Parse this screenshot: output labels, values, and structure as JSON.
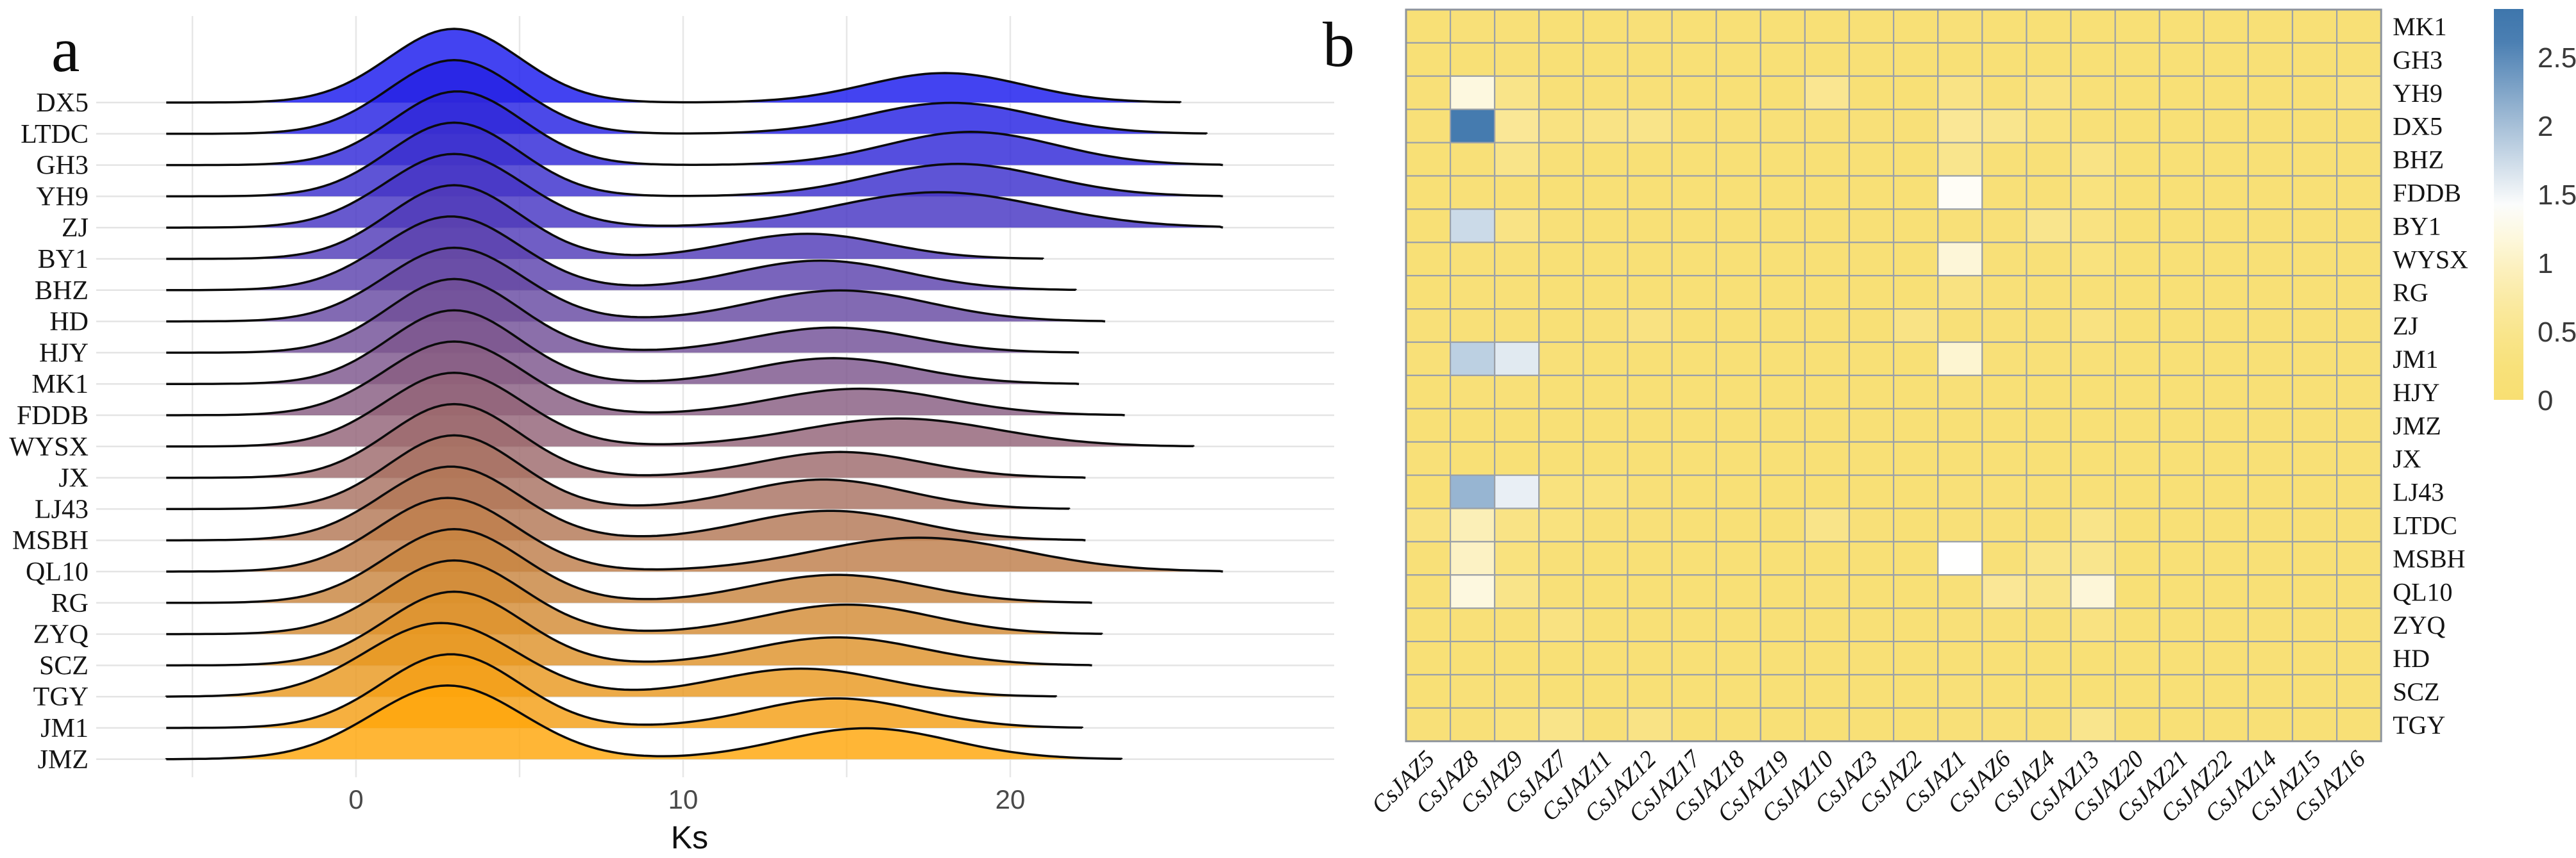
{
  "figure": {
    "background": "#FFFFFF",
    "panel_a_label": "a",
    "panel_b_label": "b"
  },
  "chart_data": [
    {
      "panel": "a",
      "type": "ridgeline",
      "title": "",
      "xlabel": "Ks",
      "ylabel": "",
      "x_ticks": [
        "0",
        "10",
        "20"
      ],
      "x_tick_values": [
        0,
        10,
        20
      ],
      "x_gridline_values": [
        -5,
        0,
        5,
        10,
        15,
        20
      ],
      "x_range": [
        -7.7,
        30
      ],
      "grid_on": true,
      "ridge_color_top": "#1A1AEE",
      "ridge_color_bottom": "#FFA60A",
      "outline_color": "#0B0B0B",
      "gridline_color": "#E7E7E7",
      "categories_top_to_bottom": [
        "DX5",
        "LTDC",
        "GH3",
        "YH9",
        "ZJ",
        "BY1",
        "BHZ",
        "HD",
        "HJY",
        "MK1",
        "FDDB",
        "WYSX",
        "JX",
        "LJ43",
        "MSBH",
        "QL10",
        "RG",
        "ZYQ",
        "SCZ",
        "TGY",
        "JM1",
        "JMZ"
      ],
      "series": [
        {
          "label": "DX5",
          "peak1": {
            "mu": 3.0,
            "sigma": 2.0,
            "amp": 1.0
          },
          "peak2": {
            "mu": 18.0,
            "sigma": 2.4,
            "amp": 0.4
          }
        },
        {
          "label": "LTDC",
          "peak1": {
            "mu": 3.0,
            "sigma": 2.0,
            "amp": 1.0
          },
          "peak2": {
            "mu": 18.2,
            "sigma": 2.6,
            "amp": 0.42
          }
        },
        {
          "label": "GH3",
          "peak1": {
            "mu": 3.1,
            "sigma": 2.0,
            "amp": 1.0
          },
          "peak2": {
            "mu": 18.8,
            "sigma": 2.6,
            "amp": 0.45
          }
        },
        {
          "label": "YH9",
          "peak1": {
            "mu": 3.0,
            "sigma": 2.0,
            "amp": 1.0
          },
          "peak2": {
            "mu": 18.4,
            "sigma": 2.7,
            "amp": 0.44
          }
        },
        {
          "label": "ZJ",
          "peak1": {
            "mu": 3.0,
            "sigma": 2.1,
            "amp": 1.0
          },
          "peak2": {
            "mu": 17.8,
            "sigma": 3.2,
            "amp": 0.48
          }
        },
        {
          "label": "BY1",
          "peak1": {
            "mu": 3.0,
            "sigma": 2.0,
            "amp": 1.0
          },
          "peak2": {
            "mu": 13.8,
            "sigma": 2.4,
            "amp": 0.34
          }
        },
        {
          "label": "BHZ",
          "peak1": {
            "mu": 2.9,
            "sigma": 2.1,
            "amp": 1.0
          },
          "peak2": {
            "mu": 14.2,
            "sigma": 2.6,
            "amp": 0.4
          }
        },
        {
          "label": "HD",
          "peak1": {
            "mu": 3.0,
            "sigma": 2.1,
            "amp": 1.0
          },
          "peak2": {
            "mu": 14.8,
            "sigma": 2.7,
            "amp": 0.42
          }
        },
        {
          "label": "HJY",
          "peak1": {
            "mu": 3.0,
            "sigma": 2.0,
            "amp": 1.0
          },
          "peak2": {
            "mu": 14.6,
            "sigma": 2.5,
            "amp": 0.34
          }
        },
        {
          "label": "MK1",
          "peak1": {
            "mu": 3.0,
            "sigma": 2.0,
            "amp": 1.0
          },
          "peak2": {
            "mu": 14.6,
            "sigma": 2.5,
            "amp": 0.35
          }
        },
        {
          "label": "FDDB",
          "peak1": {
            "mu": 3.0,
            "sigma": 2.1,
            "amp": 1.0
          },
          "peak2": {
            "mu": 15.4,
            "sigma": 2.7,
            "amp": 0.36
          }
        },
        {
          "label": "WYSX",
          "peak1": {
            "mu": 3.0,
            "sigma": 2.1,
            "amp": 1.0
          },
          "peak2": {
            "mu": 16.6,
            "sigma": 3.0,
            "amp": 0.38
          }
        },
        {
          "label": "JX",
          "peak1": {
            "mu": 3.0,
            "sigma": 2.0,
            "amp": 1.0
          },
          "peak2": {
            "mu": 14.8,
            "sigma": 2.5,
            "amp": 0.35
          }
        },
        {
          "label": "LJ43",
          "peak1": {
            "mu": 3.0,
            "sigma": 2.0,
            "amp": 1.0
          },
          "peak2": {
            "mu": 14.3,
            "sigma": 2.5,
            "amp": 0.4
          }
        },
        {
          "label": "MSBH",
          "peak1": {
            "mu": 2.9,
            "sigma": 2.1,
            "amp": 1.0
          },
          "peak2": {
            "mu": 14.5,
            "sigma": 2.6,
            "amp": 0.4
          }
        },
        {
          "label": "QL10",
          "peak1": {
            "mu": 2.8,
            "sigma": 2.1,
            "amp": 1.0
          },
          "peak2": {
            "mu": 17.2,
            "sigma": 3.2,
            "amp": 0.46
          }
        },
        {
          "label": "RG",
          "peak1": {
            "mu": 3.0,
            "sigma": 2.1,
            "amp": 1.0
          },
          "peak2": {
            "mu": 14.7,
            "sigma": 2.6,
            "amp": 0.38
          }
        },
        {
          "label": "ZYQ",
          "peak1": {
            "mu": 3.0,
            "sigma": 2.1,
            "amp": 1.0
          },
          "peak2": {
            "mu": 15.0,
            "sigma": 2.6,
            "amp": 0.4
          }
        },
        {
          "label": "SCZ",
          "peak1": {
            "mu": 3.0,
            "sigma": 2.1,
            "amp": 1.0
          },
          "peak2": {
            "mu": 14.7,
            "sigma": 2.6,
            "amp": 0.38
          }
        },
        {
          "label": "TGY",
          "peak1": {
            "mu": 2.6,
            "sigma": 2.3,
            "amp": 1.0
          },
          "peak2": {
            "mu": 13.6,
            "sigma": 2.6,
            "amp": 0.38
          }
        },
        {
          "label": "JM1",
          "peak1": {
            "mu": 2.9,
            "sigma": 2.1,
            "amp": 1.0
          },
          "peak2": {
            "mu": 14.7,
            "sigma": 2.5,
            "amp": 0.4
          }
        },
        {
          "label": "JMZ",
          "peak1": {
            "mu": 2.8,
            "sigma": 2.3,
            "amp": 1.0
          },
          "peak2": {
            "mu": 15.6,
            "sigma": 2.6,
            "amp": 0.42
          }
        }
      ]
    },
    {
      "panel": "b",
      "type": "heatmap",
      "rows": [
        "MK1",
        "GH3",
        "YH9",
        "DX5",
        "BHZ",
        "FDDB",
        "BY1",
        "WYSX",
        "RG",
        "ZJ",
        "JM1",
        "HJY",
        "JMZ",
        "JX",
        "LJ43",
        "LTDC",
        "MSBH",
        "QL10",
        "ZYQ",
        "HD",
        "SCZ",
        "TGY"
      ],
      "columns": [
        "CsJAZ5",
        "CsJAZ8",
        "CsJAZ9",
        "CsJAZ7",
        "CsJAZ11",
        "CsJAZ12",
        "CsJAZ17",
        "CsJAZ18",
        "CsJAZ19",
        "CsJAZ10",
        "CsJAZ3",
        "CsJAZ2",
        "CsJAZ1",
        "CsJAZ6",
        "CsJAZ4",
        "CsJAZ13",
        "CsJAZ20",
        "CsJAZ21",
        "CsJAZ22",
        "CsJAZ14",
        "CsJAZ15",
        "CsJAZ16"
      ],
      "values": [
        [
          0.15,
          0.2,
          0.2,
          0.15,
          0.15,
          0.2,
          0.15,
          0.15,
          0.15,
          0.15,
          0.15,
          0.15,
          0.2,
          0.15,
          0.15,
          0.15,
          0.15,
          0.15,
          0.15,
          0.15,
          0.15,
          0.15
        ],
        [
          0.15,
          0.15,
          0.2,
          0.15,
          0.15,
          0.15,
          0.15,
          0.15,
          0.15,
          0.15,
          0.15,
          0.15,
          0.15,
          0.15,
          0.15,
          0.15,
          0.15,
          0.15,
          0.15,
          0.15,
          0.15,
          0.15
        ],
        [
          0.2,
          1.2,
          0.45,
          0.2,
          0.2,
          0.2,
          0.15,
          0.15,
          0.15,
          0.55,
          0.15,
          0.15,
          0.4,
          0.2,
          0.35,
          0.2,
          0.15,
          0.15,
          0.15,
          0.15,
          0.15,
          0.3
        ],
        [
          0.2,
          2.65,
          0.6,
          0.35,
          0.4,
          0.45,
          0.2,
          0.2,
          0.2,
          0.2,
          0.2,
          0.2,
          0.6,
          0.5,
          0.3,
          0.2,
          0.15,
          0.15,
          0.15,
          0.15,
          0.15,
          0.15
        ],
        [
          0.15,
          0.2,
          0.45,
          0.2,
          0.15,
          0.15,
          0.15,
          0.15,
          0.15,
          0.15,
          0.15,
          0.15,
          0.5,
          0.2,
          0.2,
          0.4,
          0.15,
          0.15,
          0.15,
          0.15,
          0.15,
          0.15
        ],
        [
          0.15,
          0.2,
          0.2,
          0.15,
          0.15,
          0.15,
          0.15,
          0.15,
          0.15,
          0.15,
          0.15,
          0.15,
          1.35,
          0.2,
          0.2,
          0.3,
          0.15,
          0.15,
          0.15,
          0.15,
          0.15,
          0.15
        ],
        [
          0.15,
          1.75,
          0.4,
          0.2,
          0.15,
          0.15,
          0.15,
          0.15,
          0.15,
          0.15,
          0.15,
          0.15,
          0.2,
          0.2,
          0.5,
          0.35,
          0.15,
          0.15,
          0.15,
          0.15,
          0.15,
          0.15
        ],
        [
          0.15,
          0.2,
          0.2,
          0.15,
          0.15,
          0.15,
          0.15,
          0.15,
          0.15,
          0.15,
          0.15,
          0.15,
          1.15,
          0.2,
          0.2,
          0.3,
          0.15,
          0.15,
          0.15,
          0.15,
          0.15,
          0.15
        ],
        [
          0.15,
          0.2,
          0.2,
          0.15,
          0.15,
          0.15,
          0.15,
          0.15,
          0.15,
          0.15,
          0.15,
          0.15,
          0.35,
          0.2,
          0.2,
          0.2,
          0.15,
          0.15,
          0.15,
          0.15,
          0.15,
          0.15
        ],
        [
          0.2,
          0.2,
          0.2,
          0.15,
          0.2,
          0.35,
          0.15,
          0.15,
          0.15,
          0.15,
          0.15,
          0.4,
          0.2,
          0.2,
          0.2,
          0.35,
          0.15,
          0.15,
          0.15,
          0.15,
          0.15,
          0.15
        ],
        [
          0.2,
          1.85,
          1.6,
          0.2,
          0.15,
          0.15,
          0.15,
          0.15,
          0.15,
          0.15,
          0.15,
          0.15,
          1.1,
          0.2,
          0.2,
          0.2,
          0.15,
          0.15,
          0.15,
          0.15,
          0.15,
          0.15
        ],
        [
          0.15,
          0.2,
          0.2,
          0.15,
          0.15,
          0.15,
          0.15,
          0.15,
          0.15,
          0.15,
          0.15,
          0.15,
          0.2,
          0.15,
          0.15,
          0.15,
          0.15,
          0.15,
          0.15,
          0.15,
          0.15,
          0.15
        ],
        [
          0.15,
          0.15,
          0.15,
          0.15,
          0.15,
          0.15,
          0.15,
          0.15,
          0.15,
          0.15,
          0.15,
          0.15,
          0.15,
          0.15,
          0.15,
          0.15,
          0.15,
          0.15,
          0.15,
          0.15,
          0.15,
          0.15
        ],
        [
          0.2,
          0.15,
          0.15,
          0.15,
          0.15,
          0.15,
          0.15,
          0.15,
          0.15,
          0.15,
          0.15,
          0.15,
          0.15,
          0.15,
          0.15,
          0.15,
          0.15,
          0.15,
          0.15,
          0.15,
          0.15,
          0.15
        ],
        [
          0.15,
          2.1,
          1.55,
          0.3,
          0.3,
          0.2,
          0.15,
          0.15,
          0.15,
          0.15,
          0.15,
          0.15,
          0.2,
          0.2,
          0.2,
          0.2,
          0.15,
          0.15,
          0.15,
          0.15,
          0.15,
          0.15
        ],
        [
          0.35,
          0.9,
          0.4,
          0.3,
          0.2,
          0.2,
          0.15,
          0.15,
          0.15,
          0.45,
          0.2,
          0.15,
          0.2,
          0.2,
          0.2,
          0.45,
          0.15,
          0.15,
          0.15,
          0.15,
          0.15,
          0.15
        ],
        [
          0.2,
          1.0,
          0.3,
          0.2,
          0.15,
          0.15,
          0.15,
          0.15,
          0.15,
          0.15,
          0.15,
          0.15,
          1.4,
          0.2,
          0.45,
          0.5,
          0.15,
          0.15,
          0.15,
          0.15,
          0.15,
          0.15
        ],
        [
          0.2,
          1.2,
          0.45,
          0.2,
          0.15,
          0.15,
          0.15,
          0.15,
          0.15,
          0.2,
          0.15,
          0.15,
          0.2,
          0.6,
          0.45,
          1.15,
          0.15,
          0.15,
          0.15,
          0.15,
          0.15,
          0.15
        ],
        [
          0.15,
          0.2,
          0.2,
          0.35,
          0.15,
          0.15,
          0.15,
          0.15,
          0.15,
          0.15,
          0.15,
          0.15,
          0.2,
          0.2,
          0.2,
          0.35,
          0.15,
          0.15,
          0.15,
          0.15,
          0.15,
          0.15
        ],
        [
          0.15,
          0.15,
          0.15,
          0.15,
          0.15,
          0.15,
          0.15,
          0.15,
          0.15,
          0.15,
          0.15,
          0.15,
          0.15,
          0.15,
          0.15,
          0.15,
          0.15,
          0.15,
          0.15,
          0.15,
          0.15,
          0.15
        ],
        [
          0.15,
          0.2,
          0.2,
          0.15,
          0.15,
          0.15,
          0.15,
          0.15,
          0.15,
          0.15,
          0.15,
          0.15,
          0.2,
          0.15,
          0.15,
          0.15,
          0.15,
          0.15,
          0.15,
          0.15,
          0.15,
          0.15
        ],
        [
          0.2,
          0.2,
          0.3,
          0.45,
          0.2,
          0.4,
          0.15,
          0.15,
          0.15,
          0.15,
          0.15,
          0.15,
          0.2,
          0.2,
          0.2,
          0.5,
          0.15,
          0.15,
          0.15,
          0.15,
          0.15,
          0.15
        ]
      ],
      "color_scale": {
        "low": "#F8DF72",
        "mid": "#FFFFFE",
        "high": "#3E76AC",
        "mid_value": 1.4,
        "legend_max": 2.85
      },
      "grid_color": "#9AA0A8",
      "legend_ticks": [
        "0",
        "0.5",
        "1",
        "1.5",
        "2",
        "2.5"
      ],
      "legend_tick_values": [
        0,
        0.5,
        1,
        1.5,
        2,
        2.5
      ],
      "legend_position": "right"
    }
  ]
}
